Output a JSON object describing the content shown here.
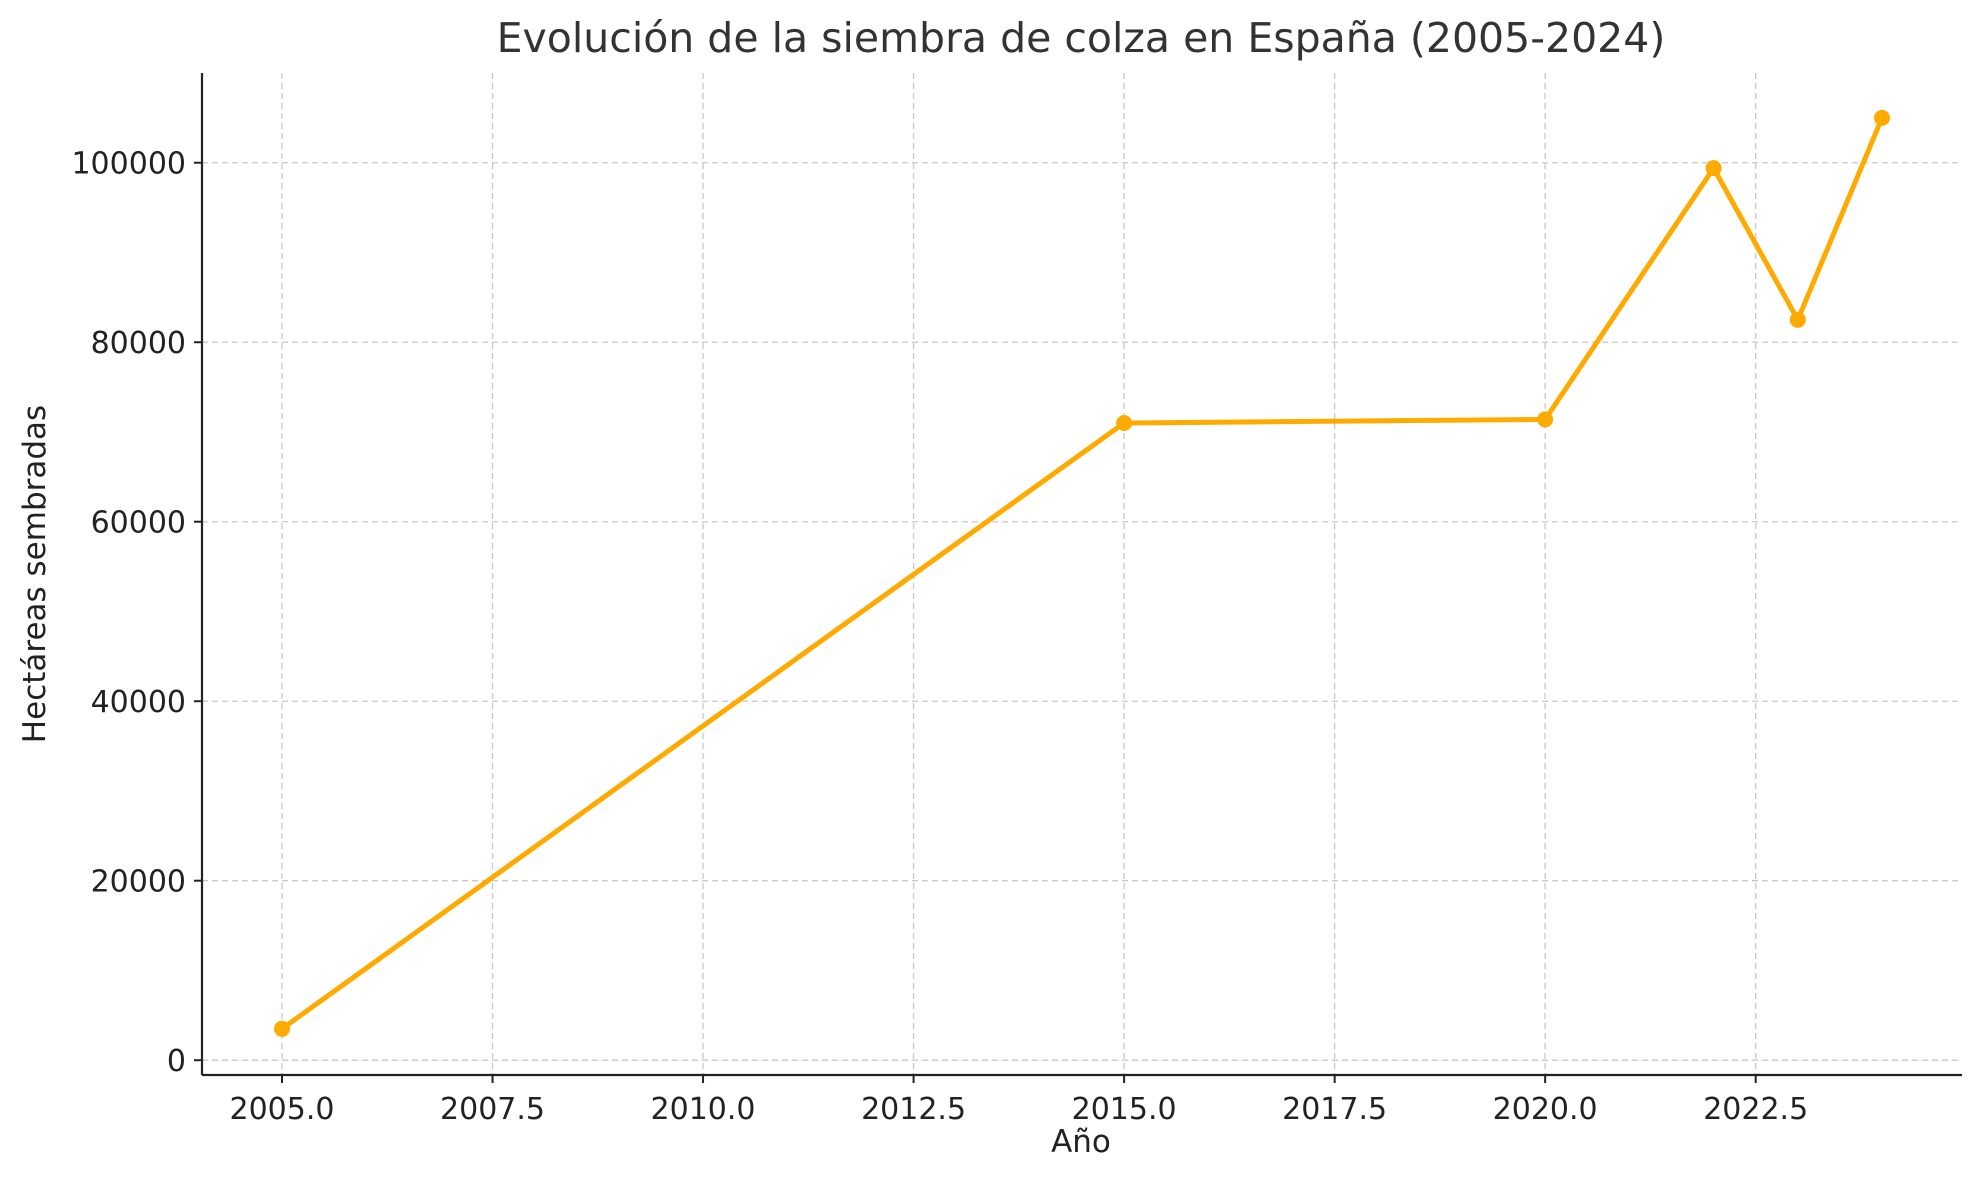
{
  "chart_data": {
    "type": "line",
    "title": "Evolución de la siembra de colza en España (2005-2024)",
    "xlabel": "Año",
    "ylabel": "Hectáreas sembradas",
    "xlim": [
      2004.05,
      2024.95
    ],
    "ylim": [
      -1650,
      110000
    ],
    "x_ticks": [
      2005.0,
      2007.5,
      2010.0,
      2012.5,
      2015.0,
      2017.5,
      2020.0,
      2022.5
    ],
    "x_tick_labels": [
      "2005.0",
      "2007.5",
      "2010.0",
      "2012.5",
      "2015.0",
      "2017.5",
      "2020.0",
      "2022.5"
    ],
    "y_ticks": [
      0,
      20000,
      40000,
      60000,
      80000,
      100000
    ],
    "y_tick_labels": [
      "0",
      "20000",
      "40000",
      "60000",
      "80000",
      "100000"
    ],
    "grid": true,
    "color": "#FFAA00",
    "series": [
      {
        "x": [
          2005,
          2015,
          2020,
          2022,
          2023,
          2024
        ],
        "y": [
          3500,
          71000,
          71400,
          99400,
          82500,
          105000
        ]
      }
    ]
  }
}
